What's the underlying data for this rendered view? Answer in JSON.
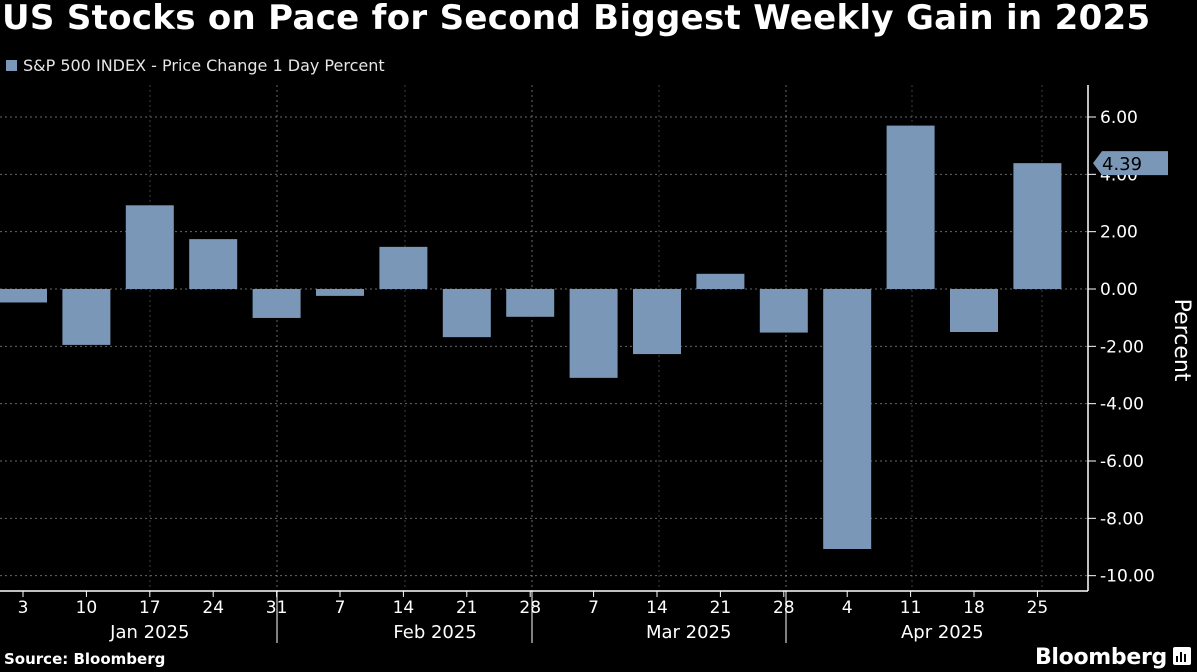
{
  "title": "US Stocks on Pace for Second Biggest Weekly Gain in 2025",
  "legend_label": "S&P 500 INDEX - Price Change 1 Day Percent",
  "source": "Source: Bloomberg",
  "brand": "Bloomberg",
  "colors": {
    "bar": "#7a97b7",
    "background": "#000000",
    "grid": "#8a8a8a",
    "text": "#ffffff"
  },
  "chart_data": {
    "type": "bar",
    "series": [
      {
        "name": "S&P 500 INDEX - Price Change 1 Day Percent",
        "x": [
          "3",
          "10",
          "17",
          "24",
          "31",
          "7",
          "14",
          "21",
          "28",
          "7",
          "14",
          "21",
          "28",
          "4",
          "11",
          "18",
          "25"
        ],
        "values": [
          -0.47,
          -1.95,
          2.92,
          1.74,
          -1.01,
          -0.24,
          1.47,
          -1.68,
          -0.97,
          -3.1,
          -2.27,
          0.53,
          -1.52,
          -9.07,
          5.7,
          -1.5,
          4.39
        ]
      }
    ],
    "x_tick_labels": [
      "3",
      "10",
      "17",
      "24",
      "31",
      "7",
      "14",
      "21",
      "28",
      "7",
      "14",
      "21",
      "28",
      "4",
      "11",
      "18",
      "25"
    ],
    "month_labels": [
      {
        "label": "Jan 2025",
        "start": 0,
        "end": 4
      },
      {
        "label": "Feb 2025",
        "start": 5,
        "end": 8
      },
      {
        "label": "Mar 2025",
        "start": 9,
        "end": 12
      },
      {
        "label": "Apr 2025",
        "start": 13,
        "end": 16
      }
    ],
    "y_ticks": [
      6.0,
      4.0,
      2.0,
      0.0,
      -2.0,
      -4.0,
      -6.0,
      -8.0,
      -10.0
    ],
    "y_tick_labels": [
      "6.00",
      "4.00",
      "2.00",
      "0.00",
      "-2.00",
      "-4.00",
      "-6.00",
      "-8.00",
      "-10.00"
    ],
    "ylim": [
      -10.5,
      7.0
    ],
    "ylabel": "Percent",
    "last_value_label": "4.39",
    "grid": true,
    "axis_side": "right"
  }
}
